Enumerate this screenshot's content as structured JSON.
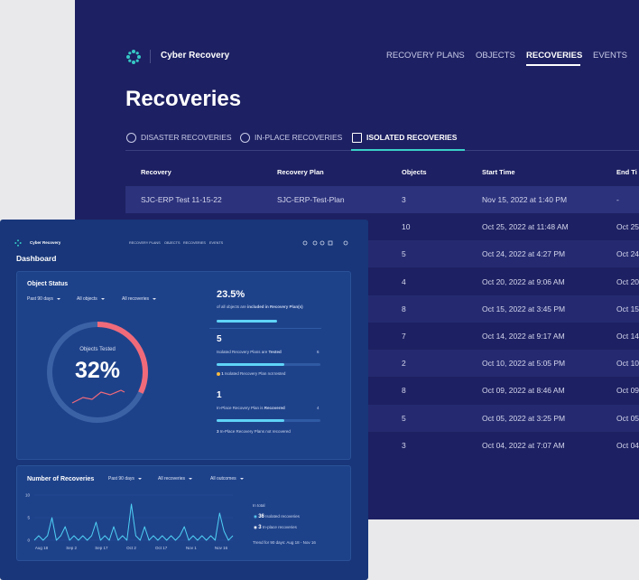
{
  "back_window": {
    "brand": "Cyber Recovery",
    "nav": [
      "RECOVERY PLANS",
      "OBJECTS",
      "RECOVERIES",
      "EVENTS"
    ],
    "title": "Recoveries",
    "tabs": [
      "DISASTER RECOVERIES",
      "IN-PLACE RECOVERIES",
      "ISOLATED RECOVERIES"
    ],
    "table": {
      "headers": [
        "Recovery",
        "Recovery Plan",
        "Objects",
        "Start Time",
        "End Ti"
      ],
      "rows": [
        {
          "recovery": "SJC-ERP Test 11-15-22",
          "plan": "SJC-ERP-Test-Plan",
          "objects": 3,
          "start": "Nov 15, 2022 at 1:40 PM",
          "end": "-"
        },
        {
          "objects": 10,
          "start": "Oct 25, 2022 at 11:48 AM",
          "end": "Oct 25"
        },
        {
          "objects": 5,
          "start": "Oct 24, 2022 at 4:27 PM",
          "end": "Oct 24"
        },
        {
          "objects": 4,
          "start": "Oct 20, 2022 at 9:06 AM",
          "end": "Oct 20"
        },
        {
          "objects": 8,
          "start": "Oct 15, 2022 at 3:45 PM",
          "end": "Oct 15"
        },
        {
          "objects": 7,
          "start": "Oct 14, 2022 at 9:17 AM",
          "end": "Oct 14"
        },
        {
          "objects": 2,
          "start": "Oct 10, 2022 at 5:05 PM",
          "end": "Oct 10"
        },
        {
          "objects": 8,
          "start": "Oct 09, 2022 at 8:46 AM",
          "end": "Oct 09"
        },
        {
          "objects": 5,
          "start": "Oct 05, 2022 at 3:25 PM",
          "end": "Oct 05"
        },
        {
          "objects": 3,
          "start": "Oct 04, 2022 at 7:07 AM",
          "end": "Oct 04"
        }
      ]
    }
  },
  "dashboard": {
    "brand": "Cyber Recovery",
    "nav": [
      "RECOVERY PLANS",
      "OBJECTS",
      "RECOVERIES",
      "EVENTS"
    ],
    "title": "Dashboard",
    "object_status": {
      "title": "Object Status",
      "filters": [
        "Past 90 days",
        "All objects",
        "All recoveries"
      ],
      "donut_label": "Objects Tested",
      "tested": {
        "value": 32,
        "label": "32%"
      },
      "included": {
        "value": 23.5,
        "label": "23.5%"
      },
      "included_text": "of all objects are",
      "included_bold": "included in Recovery Plan(s)",
      "isolated_tested": 5,
      "isolated_text": "Isolated Recovery Plans are",
      "isolated_bold": "Tested",
      "isolated_total": 6,
      "isolated_not_count": 1,
      "isolated_not_text": "Isolated Recovery Plan not tested",
      "inplace_recovered": 1,
      "inplace_text": "In-Place Recovery Plan is",
      "inplace_bold": "Recovered",
      "inplace_total": 4,
      "inplace_not_count": 3,
      "inplace_not_text": "In-Place Recovery Plans not recovered"
    },
    "recoveries": {
      "type": "line",
      "title": "Number of Recoveries",
      "filters": [
        "Past 90 days",
        "All recoveries",
        "All outcomes"
      ],
      "ylim": [
        0,
        10
      ],
      "yticks": [
        0,
        5,
        10
      ],
      "x_labels": [
        "Aug 18",
        "Sep 2",
        "Sep 17",
        "Oct 2",
        "Oct 17",
        "Nov 1",
        "Nov 16"
      ],
      "color": "#4fd1f5",
      "values": [
        0,
        1,
        0,
        1,
        5,
        0,
        1,
        3,
        0,
        1,
        0,
        1,
        0,
        1,
        4,
        0,
        1,
        0,
        3,
        0,
        1,
        0,
        8,
        1,
        0,
        3,
        0,
        1,
        0,
        1,
        0,
        1,
        0,
        1,
        3,
        0,
        1,
        0,
        1,
        0,
        1,
        0,
        6,
        2,
        0,
        1
      ],
      "total_label": "In total",
      "isolated_count": 36,
      "isolated_text": "Isolated recoveries",
      "inplace_count": 3,
      "inplace_text": "In-place recoveries",
      "trend": "Trend for 90 days: Aug 18 - Nov 16"
    }
  }
}
